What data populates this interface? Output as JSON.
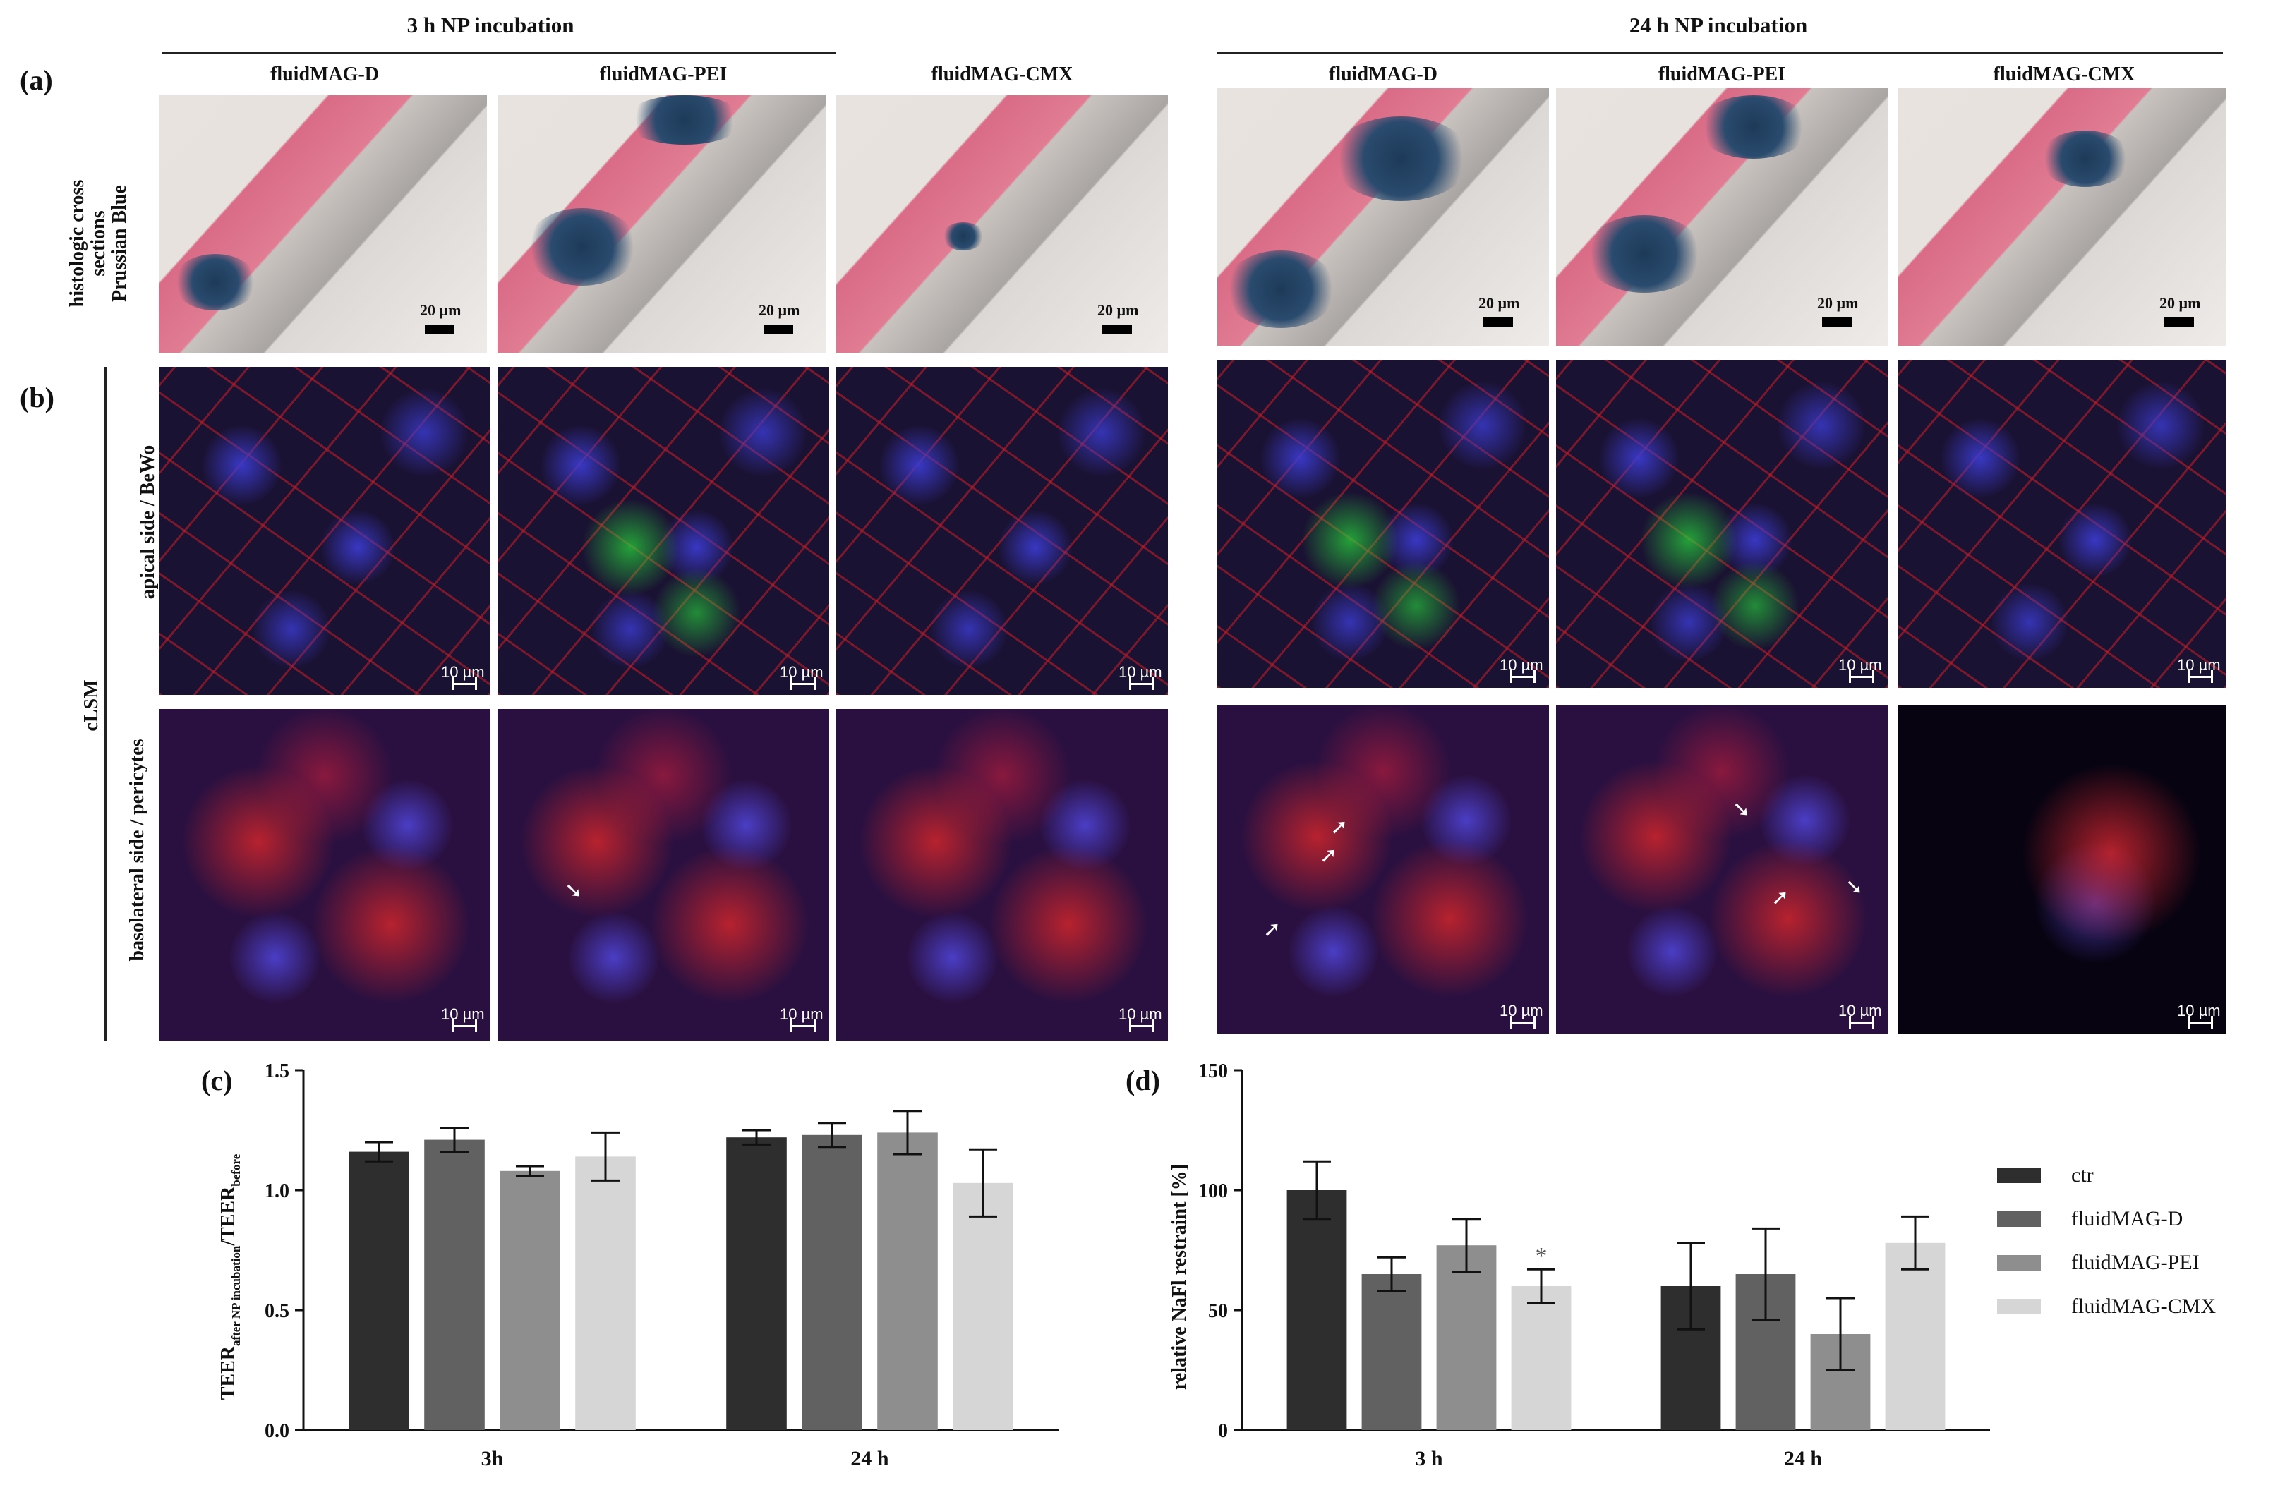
{
  "header": {
    "group_3h": "3 h NP incubation",
    "group_24h": "24 h NP incubation"
  },
  "panel_letters": {
    "a": "(a)",
    "b": "(b)",
    "c": "(c)",
    "d": "(d)"
  },
  "columns": [
    "fluidMAG-D",
    "fluidMAG-PEI",
    "fluidMAG-CMX"
  ],
  "row_labels": {
    "histo_line1": "histologic cross",
    "histo_line2": "sections",
    "histo_line3": "Prussian Blue",
    "clsm": "cLSM",
    "apical": "apical side / BeWo",
    "basolateral": "basolateral side / pericytes"
  },
  "scale_labels": {
    "histo": "20 µm",
    "clsm": "10 µm"
  },
  "colors": {
    "ctr": "#2e2e2e",
    "fluidMAG-D": "#616161",
    "fluidMAG-PEI": "#8e8e8e",
    "fluidMAG-CMX": "#d6d6d6"
  },
  "chart_data": [
    {
      "type": "bar",
      "panel": "(c)",
      "categories": [
        "3h",
        "24 h"
      ],
      "ylabel": "TEER after NP incubation / TEER before",
      "ylim": [
        0.0,
        1.5
      ],
      "yticks": [
        "0.0",
        "0.5",
        "1.0",
        "1.5"
      ],
      "series": [
        {
          "values": [
            1.16,
            1.22
          ],
          "errors": [
            0.04,
            0.03
          ]
        },
        {
          "values": [
            1.21,
            1.23
          ],
          "errors": [
            0.05,
            0.05
          ]
        },
        {
          "values": [
            1.08,
            1.24
          ],
          "errors": [
            0.02,
            0.09
          ]
        },
        {
          "values": [
            1.14,
            1.03
          ],
          "errors": [
            0.1,
            0.14
          ]
        }
      ]
    },
    {
      "type": "bar",
      "panel": "(d)",
      "categories": [
        "3 h",
        "24 h"
      ],
      "ylabel": "relative NaFl restraint [%]",
      "ylim": [
        0,
        150
      ],
      "yticks": [
        "0",
        "50",
        "100",
        "150"
      ],
      "legend": "right",
      "series": [
        {
          "name": "ctr",
          "values": [
            100,
            60
          ],
          "errors": [
            12,
            18
          ]
        },
        {
          "name": "fluidMAG-D",
          "values": [
            65,
            65
          ],
          "errors": [
            7,
            19
          ]
        },
        {
          "name": "fluidMAG-PEI",
          "values": [
            77,
            40
          ],
          "errors": [
            11,
            15
          ]
        },
        {
          "name": "fluidMAG-CMX",
          "values": [
            60,
            78
          ],
          "errors": [
            7,
            11
          ]
        }
      ],
      "annotation": "*"
    }
  ]
}
